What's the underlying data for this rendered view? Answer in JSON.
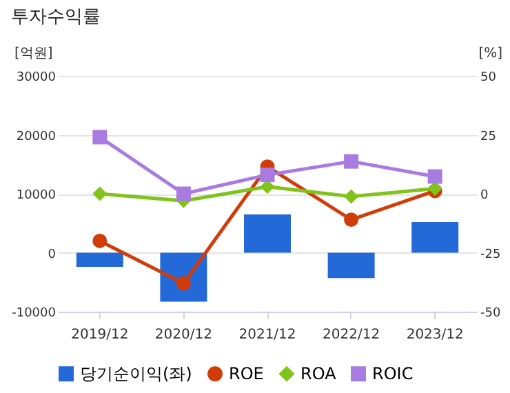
{
  "chart_data": {
    "type": "bar",
    "title": "투자수익률",
    "ylabel": "[억원]",
    "y2label": "[%]",
    "categories": [
      "2019/12",
      "2020/12",
      "2021/12",
      "2022/12",
      "2023/12"
    ],
    "series": [
      {
        "name": "당기순이익(좌)",
        "color": "#2469d8",
        "values": [
          -2400,
          -8300,
          6500,
          -4300,
          5200
        ]
      },
      {
        "name": "ROE",
        "type": "line",
        "axis": "y2",
        "marker": "circle",
        "color": "#d03c0a",
        "values": [
          -20,
          -38,
          11.5,
          -11,
          1.2
        ]
      },
      {
        "name": "ROA",
        "type": "line",
        "axis": "y2",
        "marker": "diamond",
        "color": "#80c31c",
        "values": [
          0,
          -3,
          3,
          -1.2,
          2.2
        ]
      },
      {
        "name": "ROIC",
        "type": "line",
        "axis": "y2",
        "marker": "square",
        "color": "#a87be0",
        "values": [
          24,
          0,
          8,
          13.7,
          7.3
        ]
      }
    ],
    "ylim": [
      -10000,
      30000
    ],
    "yticks": [
      -10000,
      0,
      10000,
      20000,
      30000
    ],
    "y2lim": [
      -50,
      50
    ],
    "y2ticks": [
      -50,
      -25,
      0,
      25,
      50
    ],
    "grid": "y",
    "legend": "bottom"
  }
}
